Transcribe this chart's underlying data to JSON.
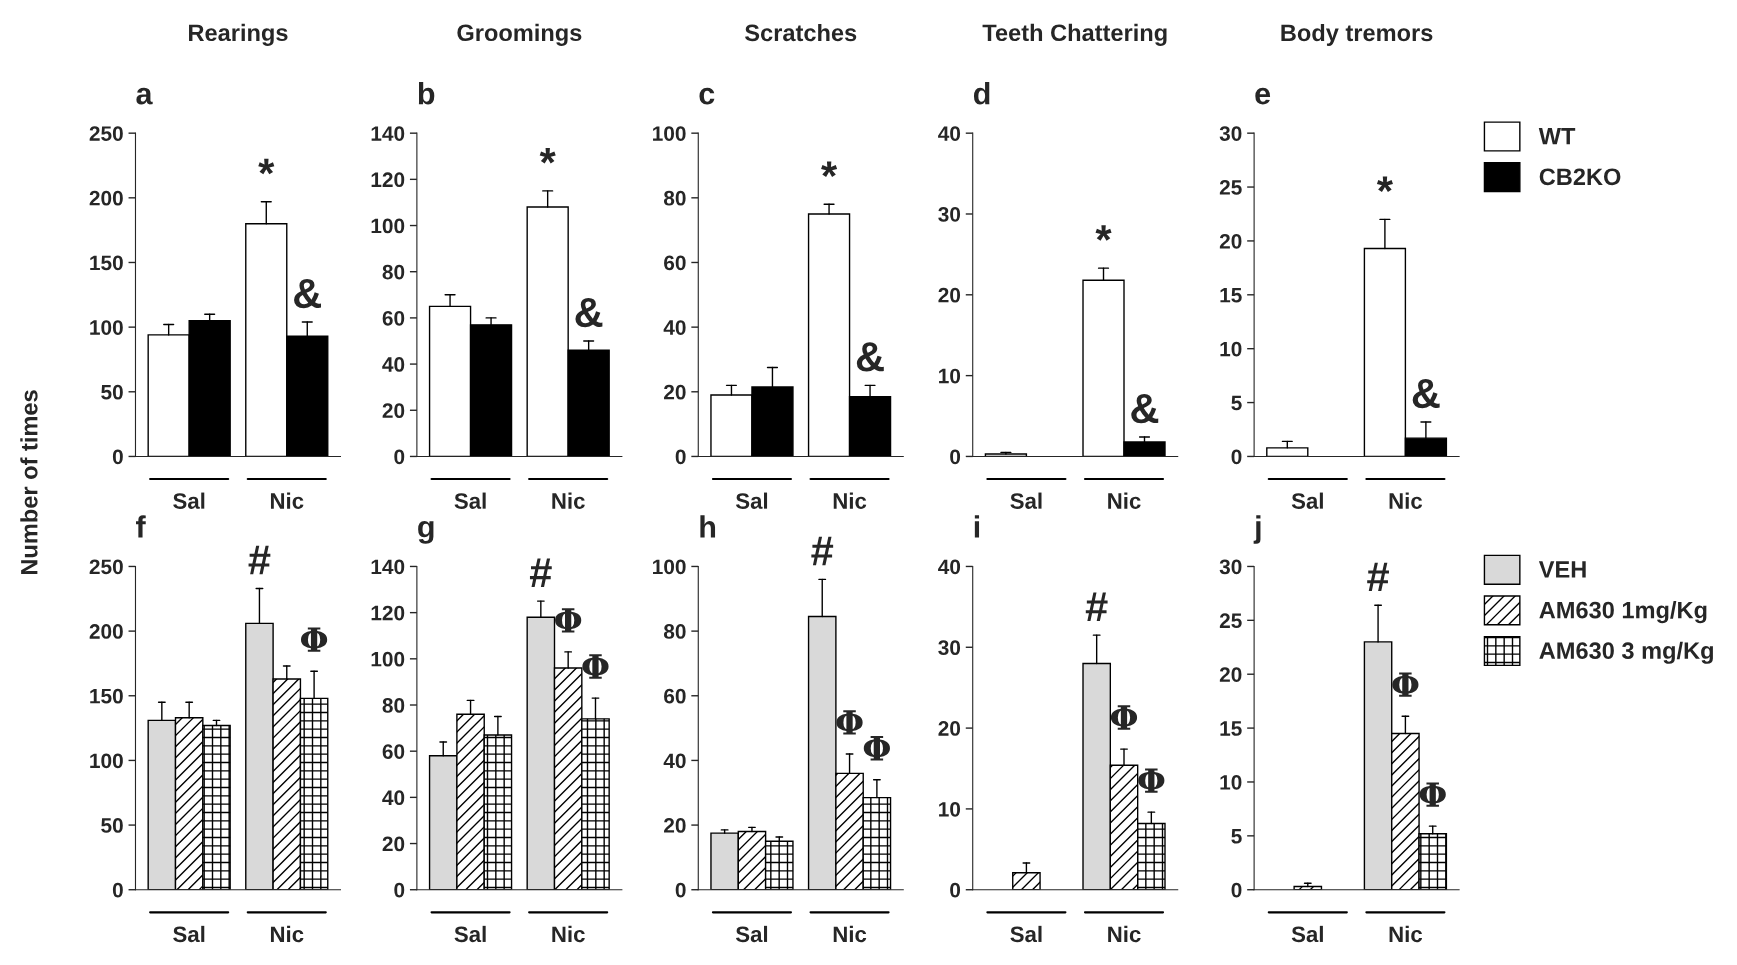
{
  "chart_data": [
    {
      "type": "bar",
      "title": "Rearings",
      "subtitle": "a",
      "ylabel": "Number of times",
      "categories": [
        "Sal",
        "Nic"
      ],
      "ylim": [
        0,
        250
      ],
      "yticks": [
        0,
        50,
        100,
        150,
        200,
        250
      ],
      "grid": false,
      "series": [
        {
          "color": "#ffffff",
          "values": [
            94,
            180
          ],
          "errors": [
            [
              94,
              102
            ],
            [
              180,
              197
            ]
          ]
        },
        {
          "color": "#000000",
          "values": [
            105,
            93
          ],
          "errors": [
            [
              105,
              110
            ],
            [
              93,
              104
            ]
          ]
        }
      ],
      "annotations": [
        "*",
        "&"
      ]
    },
    {
      "type": "bar",
      "title": "Groomings",
      "subtitle": "b",
      "categories": [
        "Sal",
        "Nic"
      ],
      "ylim": [
        0,
        140
      ],
      "yticks": [
        0,
        20,
        40,
        60,
        80,
        100,
        120,
        140
      ],
      "grid": false,
      "series": [
        {
          "color": "#ffffff",
          "values": [
            65,
            108
          ],
          "errors": [
            [
              65,
              70
            ],
            [
              108,
              115
            ]
          ]
        },
        {
          "color": "#000000",
          "values": [
            57,
            46
          ],
          "errors": [
            [
              57,
              60
            ],
            [
              46,
              50
            ]
          ]
        }
      ],
      "annotations": [
        "*",
        "&"
      ]
    },
    {
      "type": "bar",
      "title": "Scratches",
      "subtitle": "c",
      "categories": [
        "Sal",
        "Nic"
      ],
      "ylim": [
        0,
        100
      ],
      "yticks": [
        0,
        20,
        40,
        60,
        80,
        100
      ],
      "grid": false,
      "series": [
        {
          "color": "#ffffff",
          "values": [
            19,
            75
          ],
          "errors": [
            [
              19,
              22
            ],
            [
              75,
              78
            ]
          ]
        },
        {
          "color": "#000000",
          "values": [
            21.5,
            18.5
          ],
          "errors": [
            [
              21.5,
              27.5
            ],
            [
              18.5,
              22
            ]
          ]
        }
      ],
      "annotations": [
        "*",
        "&"
      ]
    },
    {
      "type": "bar",
      "title": "Teeth Chattering",
      "subtitle": "d",
      "categories": [
        "Sal",
        "Nic"
      ],
      "ylim": [
        0,
        40
      ],
      "yticks": [
        0,
        10,
        20,
        30,
        40
      ],
      "grid": false,
      "series": [
        {
          "color": "#ffffff",
          "values": [
            0.3,
            21.8
          ],
          "errors": [
            [
              0.3,
              0.5
            ],
            [
              21.8,
              23.3
            ]
          ]
        },
        {
          "color": "#000000",
          "values": [
            0,
            1.8
          ],
          "errors": [
            null,
            [
              1.8,
              2.4
            ]
          ]
        }
      ],
      "annotations": [
        "*",
        "&"
      ]
    },
    {
      "type": "bar",
      "title": "Body tremors",
      "subtitle": "e",
      "categories": [
        "Sal",
        "Nic"
      ],
      "ylim": [
        0,
        30
      ],
      "yticks": [
        0,
        5,
        10,
        15,
        20,
        25,
        30
      ],
      "grid": false,
      "legend": "right",
      "series": [
        {
          "name": "WT",
          "color": "#ffffff",
          "values": [
            0.8,
            19.3
          ],
          "errors": [
            [
              0.8,
              1.4
            ],
            [
              19.3,
              22
            ]
          ]
        },
        {
          "name": "CB2KO",
          "color": "#000000",
          "values": [
            0,
            1.7
          ],
          "errors": [
            null,
            [
              1.7,
              3.2
            ]
          ]
        }
      ],
      "annotations": [
        "*",
        "&"
      ]
    },
    {
      "type": "bar",
      "subtitle": "f",
      "categories": [
        "Sal",
        "Nic"
      ],
      "ylim": [
        0,
        250
      ],
      "yticks": [
        0,
        50,
        100,
        150,
        200,
        250
      ],
      "grid": false,
      "series": [
        {
          "color": "#d9d9d9",
          "values": [
            131,
            206
          ],
          "errors": [
            [
              131,
              145
            ],
            [
              206,
              233
            ]
          ]
        },
        {
          "color": "#000000",
          "values": [
            133,
            163
          ],
          "errors": [
            [
              133,
              145
            ],
            [
              163,
              173
            ]
          ]
        },
        {
          "color": "#000000",
          "values": [
            127,
            148
          ],
          "errors": [
            [
              127,
              131
            ],
            [
              148,
              169
            ]
          ]
        }
      ],
      "annotations": [
        "#",
        "Φ"
      ]
    },
    {
      "type": "bar",
      "subtitle": "g",
      "categories": [
        "Sal",
        "Nic"
      ],
      "ylim": [
        0,
        140
      ],
      "yticks": [
        0,
        20,
        40,
        60,
        80,
        100,
        120,
        140
      ],
      "grid": false,
      "series": [
        {
          "color": "#d9d9d9",
          "values": [
            58,
            118
          ],
          "errors": [
            [
              58,
              64
            ],
            [
              118,
              125
            ]
          ]
        },
        {
          "color": "#000000",
          "values": [
            76,
            96
          ],
          "errors": [
            [
              76,
              82
            ],
            [
              96,
              103
            ]
          ]
        },
        {
          "color": "#000000",
          "values": [
            67,
            74
          ],
          "errors": [
            [
              67,
              75
            ],
            [
              74,
              83
            ]
          ]
        }
      ],
      "annotations": [
        "#",
        "Φ",
        "Φ"
      ]
    },
    {
      "type": "bar",
      "subtitle": "h",
      "categories": [
        "Sal",
        "Nic"
      ],
      "ylim": [
        0,
        100
      ],
      "yticks": [
        0,
        20,
        40,
        60,
        80,
        100
      ],
      "grid": false,
      "series": [
        {
          "color": "#d9d9d9",
          "values": [
            17.5,
            84.5
          ],
          "errors": [
            [
              17.5,
              18.5
            ],
            [
              84.5,
              96
            ]
          ]
        },
        {
          "color": "#000000",
          "values": [
            18,
            36
          ],
          "errors": [
            [
              18,
              19.3
            ],
            [
              36,
              42
            ]
          ]
        },
        {
          "color": "#000000",
          "values": [
            15,
            28.5
          ],
          "errors": [
            [
              15,
              16.3
            ],
            [
              28.5,
              34
            ]
          ]
        }
      ],
      "annotations": [
        "#",
        "Φ",
        "Φ"
      ]
    },
    {
      "type": "bar",
      "subtitle": "i",
      "categories": [
        "Sal",
        "Nic"
      ],
      "ylim": [
        0,
        40
      ],
      "yticks": [
        0,
        10,
        20,
        30,
        40
      ],
      "grid": false,
      "series": [
        {
          "color": "#d9d9d9",
          "values": [
            0,
            28
          ],
          "errors": [
            null,
            [
              28,
              31.5
            ]
          ]
        },
        {
          "color": "#000000",
          "values": [
            2.1,
            15.4
          ],
          "errors": [
            [
              2.1,
              3.3
            ],
            [
              15.4,
              17.4
            ]
          ]
        },
        {
          "color": "#000000",
          "values": [
            0,
            8.2
          ],
          "errors": [
            null,
            [
              8.2,
              9.6
            ]
          ]
        }
      ],
      "annotations": [
        "#",
        "Φ",
        "Φ"
      ]
    },
    {
      "type": "bar",
      "subtitle": "j",
      "categories": [
        "Sal",
        "Nic"
      ],
      "ylim": [
        0,
        30
      ],
      "yticks": [
        0,
        5,
        10,
        15,
        20,
        25,
        30
      ],
      "grid": false,
      "legend": "right",
      "series": [
        {
          "name": "VEH",
          "color": "#d9d9d9",
          "values": [
            0,
            23
          ],
          "errors": [
            null,
            [
              23,
              26.4
            ]
          ]
        },
        {
          "name": "AM630 1mg/Kg",
          "color": "#000000",
          "values": [
            0.3,
            14.5
          ],
          "errors": [
            [
              0.3,
              0.6
            ],
            [
              14.5,
              16.1
            ]
          ]
        },
        {
          "name": "AM630 3 mg/Kg",
          "color": "#000000",
          "values": [
            0,
            5.2
          ],
          "errors": [
            null,
            [
              5.2,
              5.9
            ]
          ]
        }
      ],
      "annotations": [
        "#",
        "Φ",
        "Φ"
      ]
    }
  ]
}
